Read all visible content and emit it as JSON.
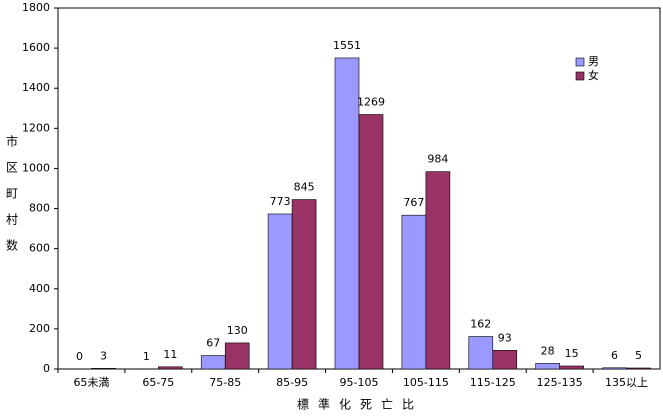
{
  "chart_data": {
    "type": "bar",
    "x_label": "標準化死亡比",
    "y_label": "市区町村数",
    "categories": [
      "65未満",
      "65-75",
      "75-85",
      "85-95",
      "95-105",
      "105-115",
      "115-125",
      "125-135",
      "135以上"
    ],
    "series": [
      {
        "name": "男",
        "color": "#9999ff",
        "values": [
          0,
          1,
          67,
          773,
          1551,
          767,
          162,
          28,
          6
        ]
      },
      {
        "name": "女",
        "color": "#993366",
        "values": [
          3,
          11,
          130,
          845,
          1269,
          984,
          93,
          15,
          5
        ]
      }
    ],
    "ylim": [
      0,
      1800
    ],
    "yticks": [
      0,
      200,
      400,
      600,
      800,
      1000,
      1200,
      1400,
      1600,
      1800
    ],
    "grid": false,
    "legend": "upper right"
  }
}
